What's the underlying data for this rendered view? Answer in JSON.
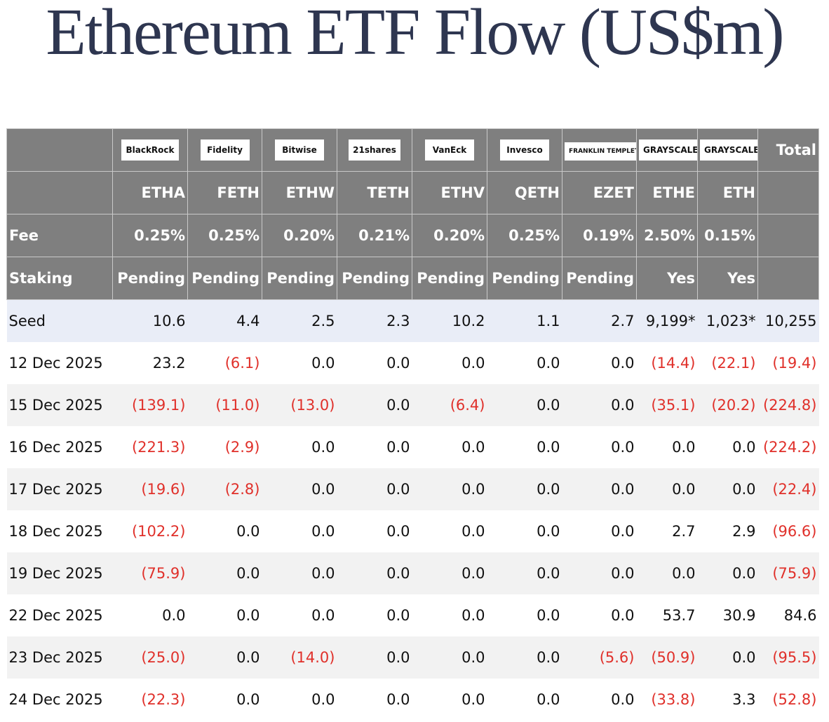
{
  "title": "Ethereum ETF Flow (US$m)",
  "table": {
    "logos": [
      "BlackRock",
      "Fidelity",
      "Bitwise",
      "21shares",
      "VanEck",
      "Invesco",
      "FRANKLIN TEMPLETON",
      "GRAYSCALE",
      "GRAYSCALE"
    ],
    "total_label": "Total",
    "tickers": [
      "ETHA",
      "FETH",
      "ETHW",
      "TETH",
      "ETHV",
      "QETH",
      "EZET",
      "ETHE",
      "ETH"
    ],
    "fee": {
      "label": "Fee",
      "values": [
        "0.25%",
        "0.25%",
        "0.20%",
        "0.21%",
        "0.20%",
        "0.25%",
        "0.19%",
        "2.50%",
        "0.15%"
      ]
    },
    "staking": {
      "label": "Staking",
      "values": [
        "Pending",
        "Pending",
        "Pending",
        "Pending",
        "Pending",
        "Pending",
        "Pending",
        "Yes",
        "Yes"
      ]
    },
    "rows": [
      [
        "Seed",
        "10.6",
        "4.4",
        "2.5",
        "2.3",
        "10.2",
        "1.1",
        "2.7",
        "9,199*",
        "1,023*",
        "10,255"
      ],
      [
        "12 Dec 2025",
        "23.2",
        "(6.1)",
        "0.0",
        "0.0",
        "0.0",
        "0.0",
        "0.0",
        "(14.4)",
        "(22.1)",
        "(19.4)"
      ],
      [
        "15 Dec 2025",
        "(139.1)",
        "(11.0)",
        "(13.0)",
        "0.0",
        "(6.4)",
        "0.0",
        "0.0",
        "(35.1)",
        "(20.2)",
        "(224.8)"
      ],
      [
        "16 Dec 2025",
        "(221.3)",
        "(2.9)",
        "0.0",
        "0.0",
        "0.0",
        "0.0",
        "0.0",
        "0.0",
        "0.0",
        "(224.2)"
      ],
      [
        "17 Dec 2025",
        "(19.6)",
        "(2.8)",
        "0.0",
        "0.0",
        "0.0",
        "0.0",
        "0.0",
        "0.0",
        "0.0",
        "(22.4)"
      ],
      [
        "18 Dec 2025",
        "(102.2)",
        "0.0",
        "0.0",
        "0.0",
        "0.0",
        "0.0",
        "0.0",
        "2.7",
        "2.9",
        "(96.6)"
      ],
      [
        "19 Dec 2025",
        "(75.9)",
        "0.0",
        "0.0",
        "0.0",
        "0.0",
        "0.0",
        "0.0",
        "0.0",
        "0.0",
        "(75.9)"
      ],
      [
        "22 Dec 2025",
        "0.0",
        "0.0",
        "0.0",
        "0.0",
        "0.0",
        "0.0",
        "0.0",
        "53.7",
        "30.9",
        "84.6"
      ],
      [
        "23 Dec 2025",
        "(25.0)",
        "0.0",
        "(14.0)",
        "0.0",
        "0.0",
        "0.0",
        "(5.6)",
        "(50.9)",
        "0.0",
        "(95.5)"
      ],
      [
        "24 Dec 2025",
        "(22.3)",
        "0.0",
        "0.0",
        "0.0",
        "0.0",
        "0.0",
        "0.0",
        "(33.8)",
        "3.3",
        "(52.8)"
      ]
    ]
  }
}
